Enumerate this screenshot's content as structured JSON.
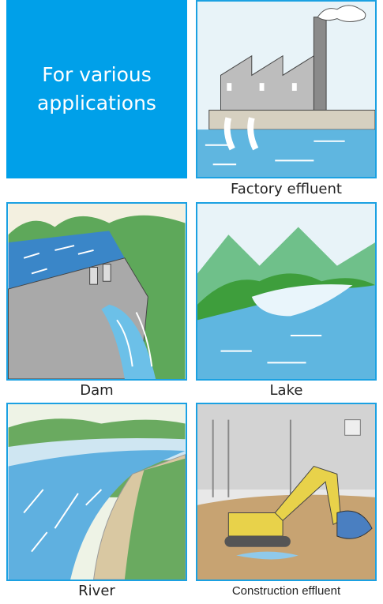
{
  "header": {
    "title": "For various applications"
  },
  "items": [
    {
      "caption": "Factory effluent"
    },
    {
      "caption": "Dam"
    },
    {
      "caption": "Lake"
    },
    {
      "caption": "River"
    },
    {
      "caption": "Construction effluent"
    }
  ]
}
